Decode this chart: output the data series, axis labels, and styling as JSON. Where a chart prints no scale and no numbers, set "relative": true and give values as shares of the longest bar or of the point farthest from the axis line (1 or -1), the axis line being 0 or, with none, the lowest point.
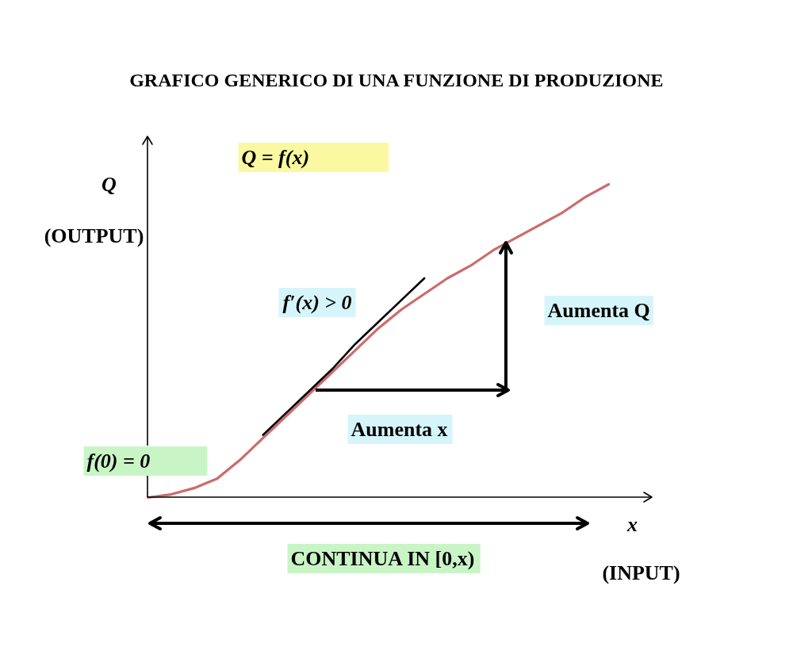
{
  "chart_data": {
    "type": "line",
    "title": "GRAFICO GENERICO DI UNA FUNZIONE DI PRODUZIONE",
    "xlabel": "x\n(INPUT)",
    "ylabel": "Q\n(OUTPUT)",
    "relative": true,
    "categories": [
      null,
      null,
      null,
      null,
      null,
      null,
      null,
      null,
      null,
      null,
      null,
      null,
      null,
      null,
      null,
      null,
      null,
      null,
      null,
      null,
      null
    ],
    "series": [
      {
        "color": "#cd6b6b",
        "values": [
          0,
          0.01,
          0.03,
          0.06,
          0.12,
          0.19,
          0.26,
          0.33,
          0.4,
          0.47,
          0.54,
          0.6,
          0.65,
          0.7,
          0.74,
          0.79,
          0.83,
          0.87,
          0.91,
          0.96,
          1
        ]
      },
      {
        "color": "#000000",
        "values": [
          null,
          null,
          null,
          null,
          null,
          0.2,
          0.27,
          0.34,
          0.41,
          0.49,
          0.56,
          0.63,
          0.7,
          null,
          null,
          null,
          null,
          null,
          null,
          null,
          null
        ]
      }
    ],
    "annotations": [
      "Q = f(x)",
      "f′(x) > 0",
      "Aumenta Q",
      "Aumenta x",
      "f(0) = 0",
      "CONTINUA IN [0,x)"
    ],
    "line_style": "solid"
  }
}
